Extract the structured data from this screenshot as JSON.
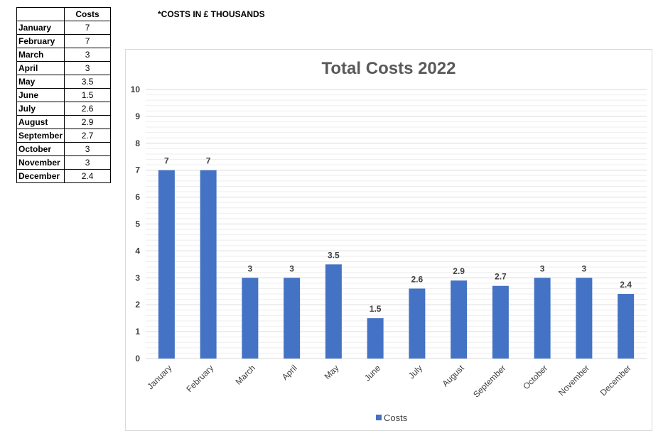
{
  "table": {
    "header": "Costs",
    "rows": [
      {
        "month": "January",
        "value": "7"
      },
      {
        "month": "February",
        "value": "7"
      },
      {
        "month": "March",
        "value": "3"
      },
      {
        "month": "April",
        "value": "3"
      },
      {
        "month": "May",
        "value": "3.5"
      },
      {
        "month": "June",
        "value": "1.5"
      },
      {
        "month": "July",
        "value": "2.6"
      },
      {
        "month": "August",
        "value": "2.9"
      },
      {
        "month": "September",
        "value": "2.7"
      },
      {
        "month": "October",
        "value": "3"
      },
      {
        "month": "November",
        "value": "3"
      },
      {
        "month": "December",
        "value": "2.4"
      }
    ]
  },
  "note": "*COSTS IN £ THOUSANDS",
  "chart_data": {
    "type": "bar",
    "title": "Total Costs 2022",
    "categories": [
      "January",
      "February",
      "March",
      "April",
      "May",
      "June",
      "July",
      "August",
      "September",
      "October",
      "November",
      "December"
    ],
    "series": [
      {
        "name": "Costs",
        "values": [
          7,
          7,
          3,
          3,
          3.5,
          1.5,
          2.6,
          2.9,
          2.7,
          3,
          3,
          2.4
        ],
        "color": "#4472c4"
      }
    ],
    "ylim": [
      0,
      10
    ],
    "yticks": [
      0,
      1,
      2,
      3,
      4,
      5,
      6,
      7,
      8,
      9,
      10
    ],
    "xlabel": "",
    "ylabel": "",
    "grid": true,
    "legend": "bottom"
  }
}
